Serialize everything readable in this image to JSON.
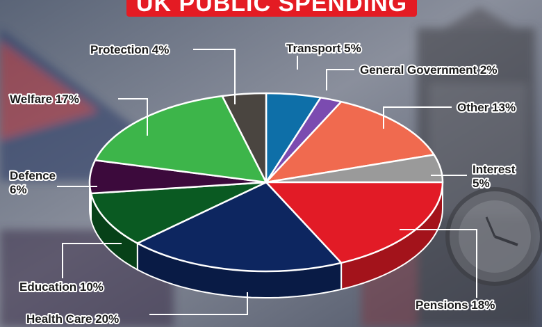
{
  "title": "UK PUBLIC SPENDING",
  "colors": {
    "Transport": "#0e6fa8",
    "General Government": "#7b4bb0",
    "Other": "#f06a4f",
    "Interest": "#9a9a9a",
    "Pensions": "#e21b26",
    "Health Care": "#0d2660",
    "Education": "#0a5a22",
    "Defence": "#3c0a3c",
    "Welfare": "#3db54a",
    "Protection": "#4a4540"
  },
  "chart_data": {
    "type": "pie",
    "style": "3d-exploded-edges",
    "labels": [
      "Transport",
      "General Government",
      "Other",
      "Interest",
      "Pensions",
      "Health Care",
      "Education",
      "Defence",
      "Welfare",
      "Protection"
    ],
    "values": [
      5,
      2,
      13,
      5,
      18,
      20,
      10,
      6,
      17,
      4
    ],
    "label_text": {
      "Transport": [
        "Transport 5%"
      ],
      "General Government": [
        "General Government 2%"
      ],
      "Other": [
        "Other 13%"
      ],
      "Interest": [
        "Interest",
        "5%"
      ],
      "Pensions": [
        "Pensions 18%"
      ],
      "Health Care": [
        "Health Care 20%"
      ],
      "Education": [
        "Education 10%"
      ],
      "Defence": [
        "Defence",
        "6%"
      ],
      "Welfare": [
        "Welfare 17%"
      ],
      "Protection": [
        "Protection 4%"
      ]
    },
    "title": "UK PUBLIC SPENDING",
    "legend": "none"
  }
}
